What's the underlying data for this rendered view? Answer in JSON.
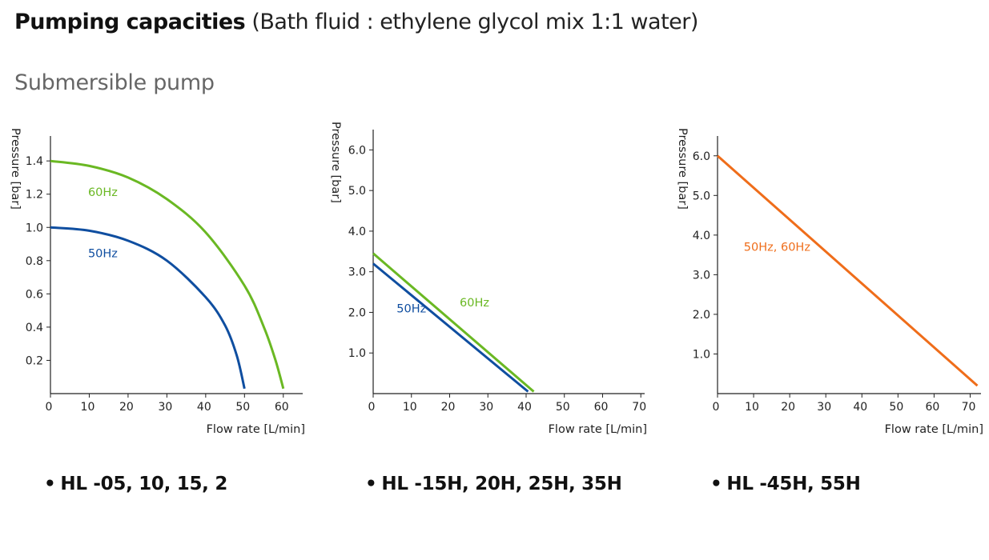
{
  "title": {
    "bold": "Pumping capacities",
    "normal": "(Bath fluid : ethylene glycol mix 1:1 water)"
  },
  "subtitle": "Submersible pump",
  "captions": [
    "HL -05, 10, 15, 2",
    "HL -15H, 20H, 25H, 35H",
    "HL -45H, 55H"
  ],
  "bullet": "•",
  "colors": {
    "green": "#6ab823",
    "blue": "#0f4ea0",
    "orange": "#ef6d1a",
    "axis": "#222222"
  },
  "chart_data": [
    {
      "type": "line",
      "xlabel": "Flow rate [L/min]",
      "ylabel": "Pressure [bar]",
      "xticks": [
        0,
        10,
        20,
        30,
        40,
        50,
        60
      ],
      "yticks": [
        0.2,
        0.4,
        0.6,
        0.8,
        1.0,
        1.2,
        1.4
      ],
      "ytick_labels": [
        "0.2",
        "0.4",
        "0.6",
        "0.8",
        "1.0",
        "1.2",
        "1.4"
      ],
      "xlim": [
        0,
        65
      ],
      "ylim": [
        0,
        1.55
      ],
      "series": [
        {
          "name": "60Hz",
          "color": "green",
          "points": [
            [
              0,
              1.4
            ],
            [
              10,
              1.37
            ],
            [
              20,
              1.3
            ],
            [
              30,
              1.17
            ],
            [
              40,
              0.97
            ],
            [
              50,
              0.65
            ],
            [
              55,
              0.4
            ],
            [
              58,
              0.2
            ],
            [
              60,
              0.03
            ]
          ]
        },
        {
          "name": "50Hz",
          "color": "blue",
          "points": [
            [
              0,
              1.0
            ],
            [
              10,
              0.98
            ],
            [
              20,
              0.92
            ],
            [
              30,
              0.8
            ],
            [
              40,
              0.58
            ],
            [
              45,
              0.41
            ],
            [
              48,
              0.23
            ],
            [
              50,
              0.03
            ]
          ]
        }
      ],
      "labels": [
        {
          "text": "60Hz",
          "color": "green",
          "x": 13.5,
          "y": 1.19
        },
        {
          "text": "50Hz",
          "color": "blue",
          "x": 13.5,
          "y": 0.82
        }
      ]
    },
    {
      "type": "line",
      "xlabel": "Flow rate [L/min]",
      "ylabel": "Pressure [bar]",
      "xticks": [
        0,
        10,
        20,
        30,
        40,
        50,
        60,
        70
      ],
      "yticks": [
        1,
        2,
        3,
        4,
        5,
        6
      ],
      "ytick_labels": [
        "1.0",
        "2.0",
        "3.0",
        "4.0",
        "5.0",
        "6.0"
      ],
      "xlim": [
        0,
        71
      ],
      "ylim": [
        0,
        6.5
      ],
      "series": [
        {
          "name": "60Hz",
          "color": "green",
          "points": [
            [
              0,
              3.45
            ],
            [
              42,
              0.05
            ]
          ]
        },
        {
          "name": "50Hz",
          "color": "blue",
          "points": [
            [
              0,
              3.2
            ],
            [
              40.5,
              0.05
            ]
          ]
        }
      ],
      "labels": [
        {
          "text": "60Hz",
          "color": "green",
          "x": 26.5,
          "y": 2.15
        },
        {
          "text": "50Hz",
          "color": "blue",
          "x": 10,
          "y": 2.0
        }
      ]
    },
    {
      "type": "line",
      "xlabel": "Flow rate [L/min]",
      "ylabel": "Pressure [bar]",
      "xticks": [
        0,
        10,
        20,
        30,
        40,
        50,
        60,
        70
      ],
      "yticks": [
        1,
        2,
        3,
        4,
        5,
        6
      ],
      "ytick_labels": [
        "1.0",
        "2.0",
        "3.0",
        "4.0",
        "5.0",
        "6.0"
      ],
      "xlim": [
        0,
        73
      ],
      "ylim": [
        0,
        6.5
      ],
      "series": [
        {
          "name": "50Hz, 60Hz",
          "color": "orange",
          "points": [
            [
              0,
              6.0
            ],
            [
              72,
              0.2
            ]
          ]
        }
      ],
      "labels": [
        {
          "text": "50Hz, 60Hz",
          "color": "orange",
          "x": 16.5,
          "y": 3.6
        }
      ]
    }
  ]
}
